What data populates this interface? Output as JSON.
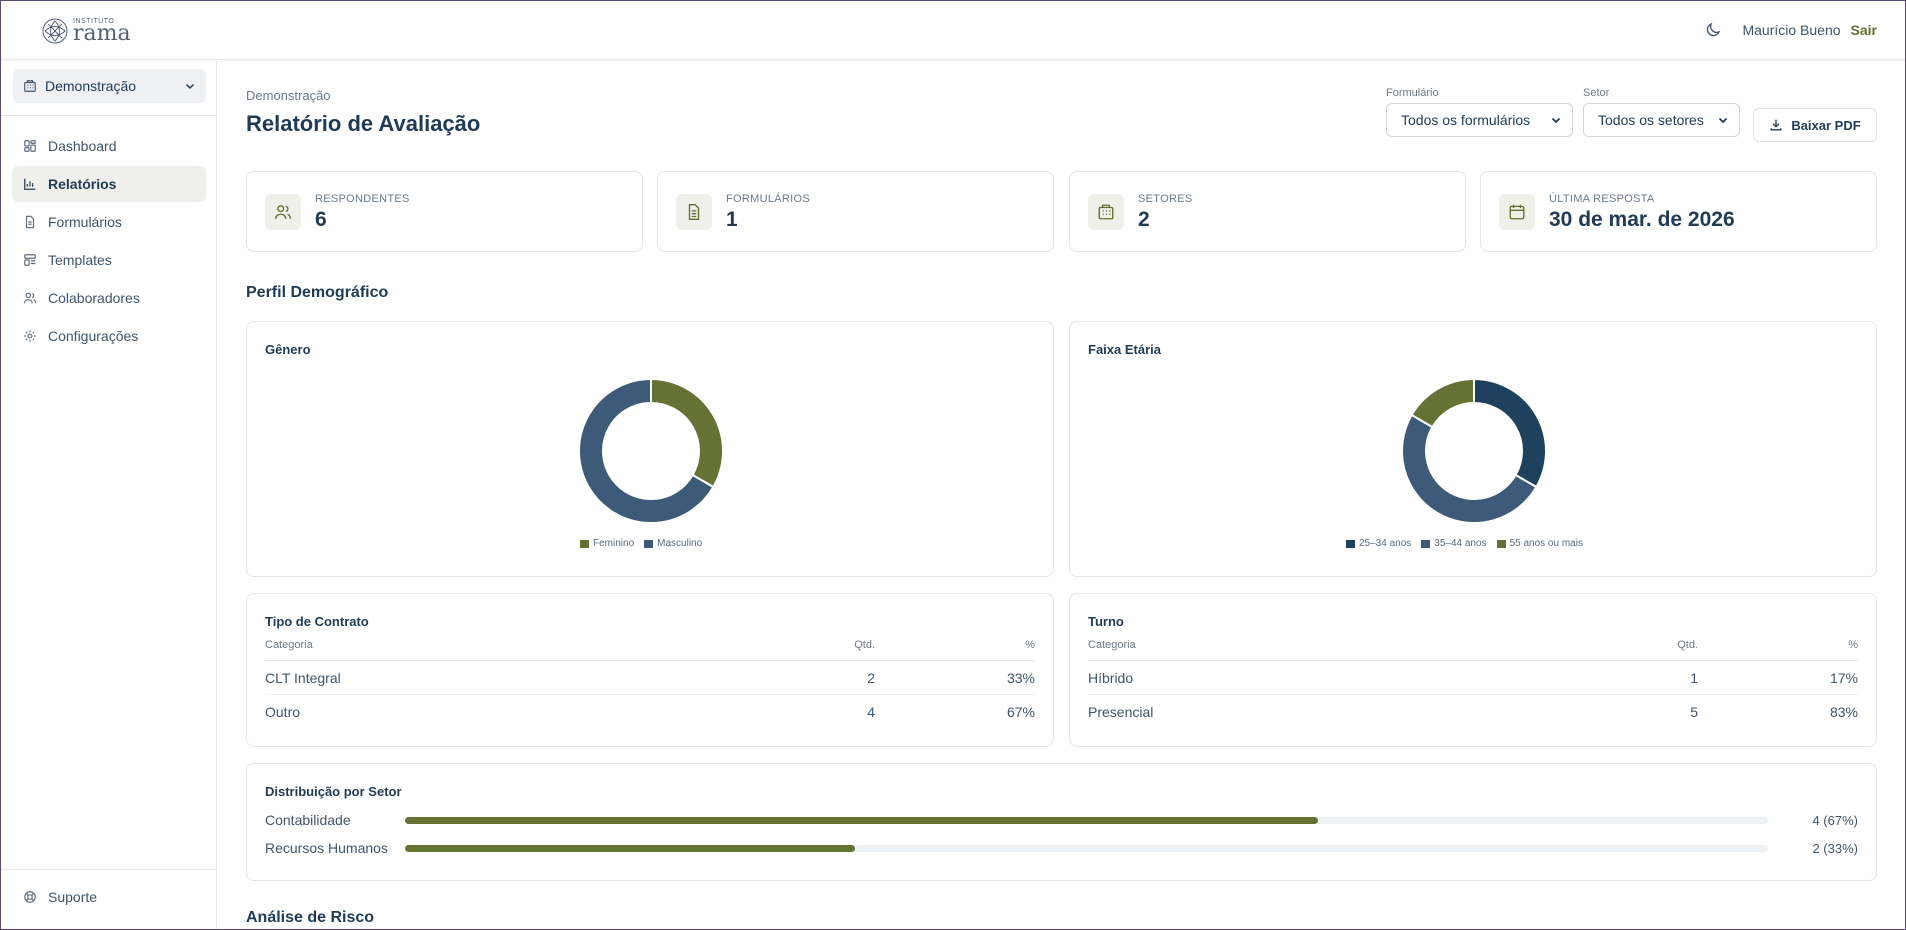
{
  "header": {
    "logo_small": "INSTITUTO",
    "logo_big": "rama",
    "user_name": "Maurício Bueno",
    "logout": "Sair"
  },
  "sidebar": {
    "org": "Demonstração",
    "items": [
      {
        "label": "Dashboard",
        "icon": "dashboard-icon"
      },
      {
        "label": "Relatórios",
        "icon": "bar-chart-icon",
        "active": true
      },
      {
        "label": "Formulários",
        "icon": "document-icon"
      },
      {
        "label": "Templates",
        "icon": "template-icon"
      },
      {
        "label": "Colaboradores",
        "icon": "users-icon"
      },
      {
        "label": "Configurações",
        "icon": "gear-icon"
      }
    ],
    "support": "Suporte"
  },
  "page": {
    "breadcrumb": "Demonstração",
    "title": "Relatório de Avaliação",
    "filters": {
      "form_label": "Formulário",
      "form_value": "Todos os formulários",
      "sector_label": "Setor",
      "sector_value": "Todos os setores"
    },
    "pdf_button": "Baixar PDF"
  },
  "stats": [
    {
      "label": "RESPONDENTES",
      "value": "6",
      "icon": "users-icon"
    },
    {
      "label": "FORMULÁRIOS",
      "value": "1",
      "icon": "document-icon"
    },
    {
      "label": "SETORES",
      "value": "2",
      "icon": "building-icon"
    },
    {
      "label": "ÚLTIMA RESPOSTA",
      "value": "30 de mar. de 2026",
      "icon": "calendar-icon"
    }
  ],
  "sections": {
    "demographic": "Perfil Demográfico",
    "risk": "Análise de Risco"
  },
  "charts": {
    "gender_title": "Gênero",
    "age_title": "Faixa Etária"
  },
  "chart_data": [
    {
      "type": "pie",
      "title": "Gênero",
      "categories": [
        "Feminino",
        "Masculino"
      ],
      "values": [
        2,
        4
      ],
      "colors": [
        "#647233",
        "#3d5a78"
      ]
    },
    {
      "type": "pie",
      "title": "Faixa Etária",
      "categories": [
        "25–34 anos",
        "35–44 anos",
        "55 anos ou mais"
      ],
      "values": [
        2,
        3,
        1
      ],
      "colors": [
        "#1e425d",
        "#3d5a78",
        "#647233"
      ]
    }
  ],
  "contract": {
    "title": "Tipo de Contrato",
    "headers": [
      "Categoria",
      "Qtd.",
      "%"
    ],
    "rows": [
      {
        "cat": "CLT Integral",
        "qty": "2",
        "pct": "33%"
      },
      {
        "cat": "Outro",
        "qty": "4",
        "pct": "67%"
      }
    ]
  },
  "shift": {
    "title": "Turno",
    "headers": [
      "Categoria",
      "Qtd.",
      "%"
    ],
    "rows": [
      {
        "cat": "Híbrido",
        "qty": "1",
        "pct": "17%"
      },
      {
        "cat": "Presencial",
        "qty": "5",
        "pct": "83%"
      }
    ]
  },
  "sector_dist": {
    "title": "Distribuição por Setor",
    "rows": [
      {
        "label": "Contabilidade",
        "value": "4 (67%)",
        "fraction": 0.67
      },
      {
        "label": "Recursos Humanos",
        "value": "2 (33%)",
        "fraction": 0.33
      }
    ]
  },
  "colors": {
    "olive": "#647233",
    "navy": "#1f3b57",
    "slate": "#3d5a78"
  }
}
